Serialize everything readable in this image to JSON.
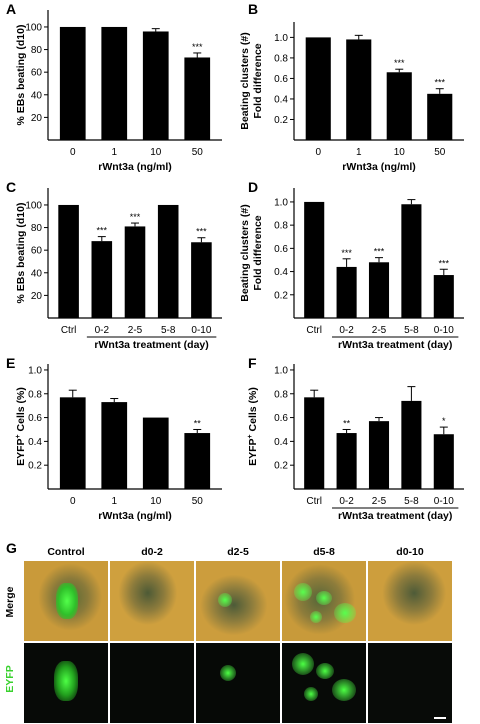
{
  "chart_data": [
    {
      "panel": "A",
      "type": "bar",
      "ylabel": "% EBs beating (d10)",
      "xlabel": "rWnt3a (ng/ml)",
      "categories": [
        "0",
        "1",
        "10",
        "50"
      ],
      "values": [
        100,
        100,
        96,
        73
      ],
      "errors": [
        0,
        0,
        2.5,
        4
      ],
      "stars": [
        "",
        "",
        "",
        "***"
      ],
      "yticks": [
        20,
        40,
        60,
        80,
        100
      ],
      "ylim": [
        0,
        115
      ]
    },
    {
      "panel": "B",
      "type": "bar",
      "ylabel": "Beating clusters (#) Fold difference",
      "xlabel": "rWnt3a (ng/ml)",
      "categories": [
        "0",
        "1",
        "10",
        "50"
      ],
      "values": [
        1.0,
        0.98,
        0.66,
        0.45
      ],
      "errors": [
        0,
        0.04,
        0.03,
        0.05
      ],
      "stars": [
        "",
        "",
        "***",
        "***"
      ],
      "yticks": [
        0.2,
        0.4,
        0.6,
        0.8,
        1.0
      ],
      "ylim": [
        0,
        1.15
      ]
    },
    {
      "panel": "C",
      "type": "bar",
      "ylabel": "% EBs beating (d10)",
      "xlabel": "rWnt3a treatment (day)",
      "categories": [
        "Ctrl",
        "0-2",
        "2-5",
        "5-8",
        "0-10"
      ],
      "values": [
        100,
        68,
        81,
        100,
        67
      ],
      "errors": [
        0,
        4,
        3,
        0,
        4
      ],
      "stars": [
        "",
        "***",
        "***",
        "",
        "***"
      ],
      "yticks": [
        20,
        40,
        60,
        80,
        100
      ],
      "ylim": [
        0,
        115
      ]
    },
    {
      "panel": "D",
      "type": "bar",
      "ylabel": "Beating clusters (#) Fold difference",
      "xlabel": "rWnt3a treatment (day)",
      "categories": [
        "Ctrl",
        "0-2",
        "2-5",
        "5-8",
        "0-10"
      ],
      "values": [
        1.0,
        0.44,
        0.48,
        0.98,
        0.37
      ],
      "errors": [
        0,
        0.07,
        0.04,
        0.04,
        0.05
      ],
      "stars": [
        "",
        "***",
        "***",
        "",
        "***"
      ],
      "yticks": [
        0.2,
        0.4,
        0.6,
        0.8,
        1.0
      ],
      "ylim": [
        0,
        1.12
      ]
    },
    {
      "panel": "E",
      "type": "bar",
      "ylabel": "EYFP+ Cells (%)",
      "xlabel": "rWnt3a (ng/ml)",
      "categories": [
        "0",
        "1",
        "10",
        "50"
      ],
      "values": [
        0.77,
        0.73,
        0.6,
        0.47
      ],
      "errors": [
        0.06,
        0.03,
        0,
        0.03
      ],
      "stars": [
        "",
        "",
        "",
        "**"
      ],
      "yticks": [
        0.2,
        0.4,
        0.6,
        0.8,
        1.0
      ],
      "ylim": [
        0,
        1.05
      ]
    },
    {
      "panel": "F",
      "type": "bar",
      "ylabel": "EYFP+ Cells (%)",
      "xlabel": "rWnt3a treatment (day)",
      "categories": [
        "Ctrl",
        "0-2",
        "2-5",
        "5-8",
        "0-10"
      ],
      "values": [
        0.77,
        0.47,
        0.57,
        0.74,
        0.46
      ],
      "errors": [
        0.06,
        0.03,
        0.03,
        0.12,
        0.06
      ],
      "stars": [
        "",
        "**",
        "",
        "",
        "*"
      ],
      "yticks": [
        0.2,
        0.4,
        0.6,
        0.8,
        1.0
      ],
      "ylim": [
        0,
        1.05
      ]
    }
  ],
  "panel_g": {
    "label": "G",
    "columns": [
      "Control",
      "d0-2",
      "d2-5",
      "d5-8",
      "d0-10"
    ],
    "rows": [
      "Merge",
      "EYFP"
    ],
    "colors": {
      "merge_bg": "#c99a3a",
      "eyfp_bg": "#070a07",
      "gfp": "#3cf23c",
      "row_label_green": "#39d12e"
    }
  }
}
